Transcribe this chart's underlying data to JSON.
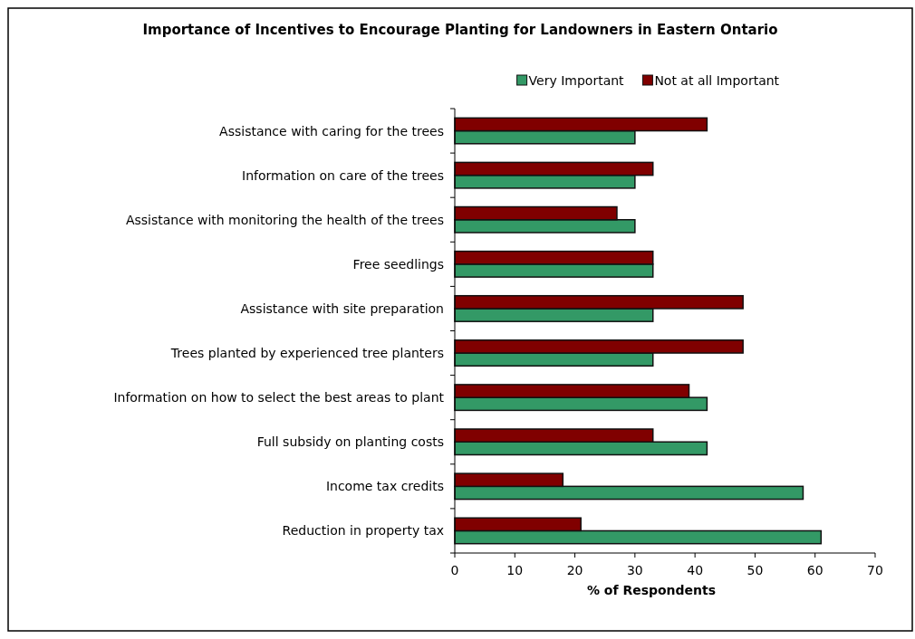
{
  "chart_data": {
    "type": "bar",
    "orientation": "horizontal",
    "title": "Importance of Incentives to Encourage Planting for Landowners in Eastern Ontario",
    "categories": [
      "Assistance with caring for the trees",
      "Information on care of the trees",
      "Assistance with monitoring the health of the trees",
      "Free seedlings",
      "Assistance with site preparation",
      "Trees planted by experienced tree planters",
      "Information on how to select the best areas to plant",
      "Full subsidy on planting costs",
      "Income tax credits",
      "Reduction in property tax"
    ],
    "series": [
      {
        "name": "Very Important",
        "color": "#339966",
        "values": [
          30,
          30,
          30,
          33,
          33,
          33,
          42,
          42,
          58,
          61
        ]
      },
      {
        "name": "Not at all Important",
        "color": "#800000",
        "values": [
          42,
          33,
          27,
          33,
          48,
          48,
          39,
          33,
          18,
          21
        ]
      }
    ],
    "xlabel": "% of Respondents",
    "xlim": [
      0,
      70
    ],
    "xticks": [
      0,
      10,
      20,
      30,
      40,
      50,
      60,
      70
    ],
    "legend": "top",
    "grid": false
  }
}
